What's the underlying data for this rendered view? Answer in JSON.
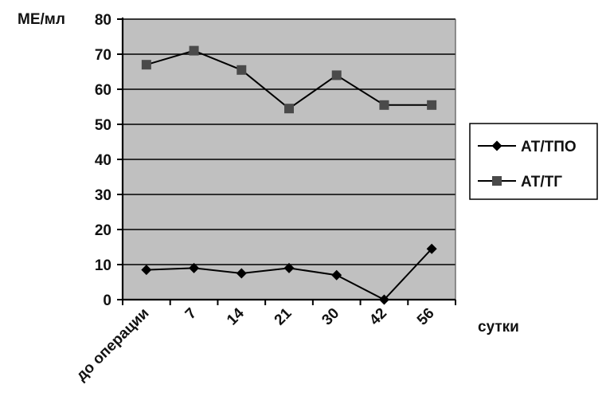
{
  "chart_data": {
    "type": "line",
    "ylabel": "МЕ/мл",
    "xlabel": "сутки",
    "categories": [
      "до операции",
      "7",
      "14",
      "21",
      "30",
      "42",
      "56"
    ],
    "ylim": [
      0,
      80
    ],
    "yticks": [
      0,
      10,
      20,
      30,
      40,
      50,
      60,
      70,
      80
    ],
    "grid": true,
    "legend_position": "right",
    "series": [
      {
        "name": "АТ/ТПО",
        "marker": "diamond",
        "color": "#000000",
        "values": [
          8.5,
          9,
          7.5,
          9,
          7,
          0,
          14.5
        ]
      },
      {
        "name": "АТ/ТГ",
        "marker": "square",
        "color": "#4a4a4a",
        "values": [
          67,
          71,
          65.5,
          54.5,
          64,
          55.5,
          55.5
        ]
      }
    ],
    "colors": {
      "plot_background": "#c0c0c0",
      "gridline": "#000000"
    }
  }
}
